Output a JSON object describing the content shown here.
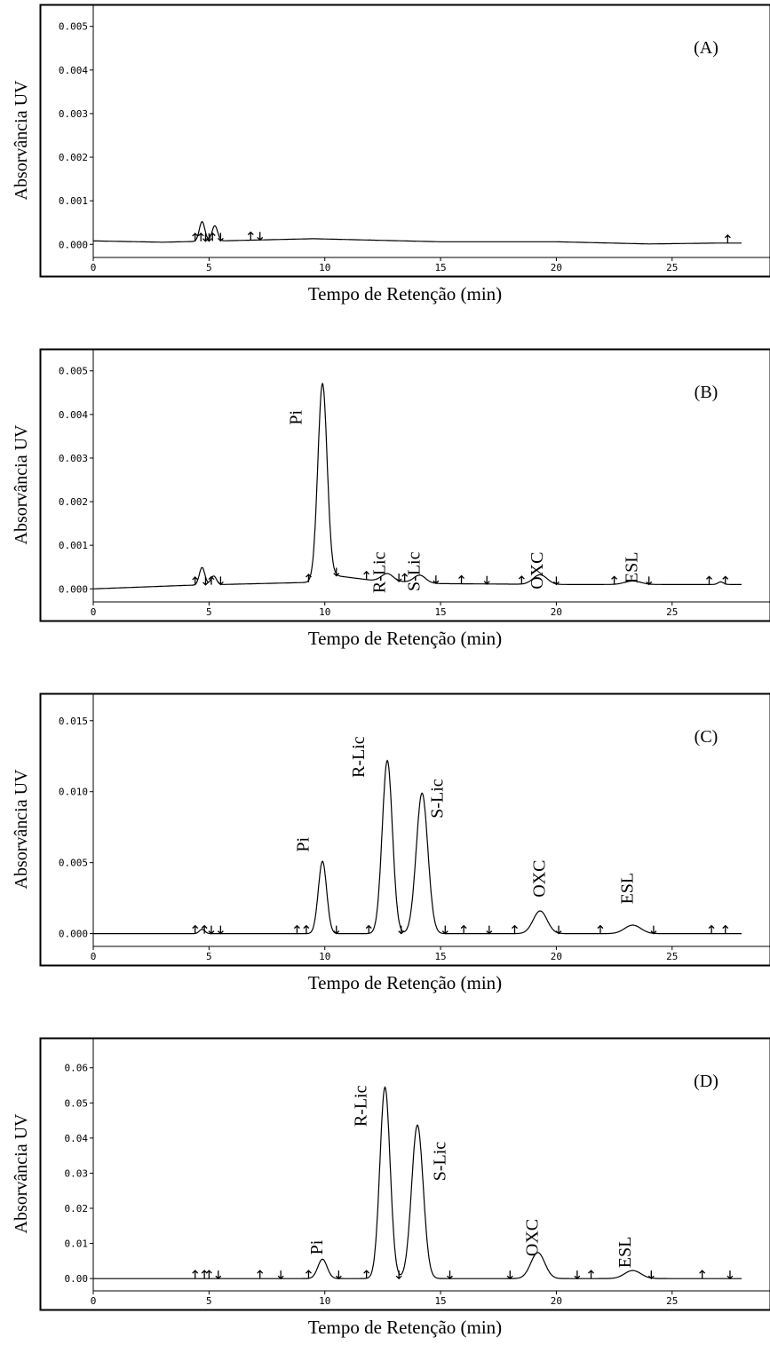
{
  "chart_data": [
    {
      "type": "line",
      "label": "(A)",
      "xlabel": "Tempo de Retenção (min)",
      "ylabel": "Absorvância UV",
      "xlim": [
        0,
        28
      ],
      "ylim": [
        -0.0003,
        0.0053
      ],
      "x_ticks": [
        0,
        5,
        10,
        15,
        20,
        25
      ],
      "y_ticks": [
        0.0,
        0.001,
        0.002,
        0.003,
        0.004,
        0.005
      ],
      "y_tick_labels": [
        "0.000",
        "0.001",
        "0.002",
        "0.003",
        "0.004",
        "0.005"
      ],
      "baseline": [
        [
          0,
          8e-05
        ],
        [
          3,
          5e-05
        ],
        [
          9.5,
          0.00013
        ],
        [
          15,
          6e-05
        ],
        [
          20,
          6e-05
        ],
        [
          24,
          1e-05
        ],
        [
          27,
          3e-05
        ],
        [
          28,
          3e-05
        ]
      ],
      "peaks": [
        {
          "x": 4.7,
          "height": 0.00045,
          "width": 0.12
        },
        {
          "x": 5.25,
          "height": 0.00035,
          "width": 0.12
        }
      ],
      "peak_labels": [],
      "markers": [
        {
          "x": 4.4,
          "dir": "up"
        },
        {
          "x": 4.65,
          "dir": "up"
        },
        {
          "x": 4.85,
          "dir": "down"
        },
        {
          "x": 5.0,
          "dir": "down"
        },
        {
          "x": 5.15,
          "dir": "up"
        },
        {
          "x": 5.5,
          "dir": "down"
        },
        {
          "x": 6.8,
          "dir": "up"
        },
        {
          "x": 7.2,
          "dir": "down"
        },
        {
          "x": 27.4,
          "dir": "up"
        }
      ]
    },
    {
      "type": "line",
      "label": "(B)",
      "xlabel": "Tempo de Retenção (min)",
      "ylabel": "Absorvância UV",
      "xlim": [
        0,
        28
      ],
      "ylim": [
        -0.0003,
        0.0053
      ],
      "x_ticks": [
        0,
        5,
        10,
        15,
        20,
        25
      ],
      "y_ticks": [
        0.0,
        0.001,
        0.002,
        0.003,
        0.004,
        0.005
      ],
      "y_tick_labels": [
        "0.000",
        "0.001",
        "0.002",
        "0.003",
        "0.004",
        "0.005"
      ],
      "baseline": [
        [
          0,
          0.0
        ],
        [
          4,
          8e-05
        ],
        [
          9.5,
          0.00015
        ],
        [
          10.5,
          0.0003
        ],
        [
          12,
          0.0002
        ],
        [
          15,
          0.00012
        ],
        [
          20,
          0.0001
        ],
        [
          28,
          0.0001
        ]
      ],
      "peaks": [
        {
          "x": 4.7,
          "height": 0.0004,
          "width": 0.12
        },
        {
          "x": 5.2,
          "height": 0.0002,
          "width": 0.12
        },
        {
          "x": 9.9,
          "height": 0.0045,
          "width": 0.2
        },
        {
          "x": 12.7,
          "height": 0.00017,
          "width": 0.25
        },
        {
          "x": 14.1,
          "height": 0.00017,
          "width": 0.25
        },
        {
          "x": 19.3,
          "height": 0.00022,
          "width": 0.3
        },
        {
          "x": 23.3,
          "height": 8e-05,
          "width": 0.35
        },
        {
          "x": 27.1,
          "height": 6e-05,
          "width": 0.12
        }
      ],
      "peak_labels": [
        {
          "text": "Pi",
          "x": 9.0,
          "y": 0.0041
        },
        {
          "text": "R-Lic",
          "x": 12.6,
          "y": 0.00085
        },
        {
          "text": "S-Lic",
          "x": 14.1,
          "y": 0.00085
        },
        {
          "text": "OXC",
          "x": 19.4,
          "y": 0.00085
        },
        {
          "text": "ESL",
          "x": 23.5,
          "y": 0.00085
        }
      ],
      "markers": [
        {
          "x": 4.4,
          "dir": "up"
        },
        {
          "x": 4.85,
          "dir": "down"
        },
        {
          "x": 5.1,
          "dir": "up"
        },
        {
          "x": 5.5,
          "dir": "down"
        },
        {
          "x": 9.3,
          "dir": "up"
        },
        {
          "x": 10.5,
          "dir": "down"
        },
        {
          "x": 11.8,
          "dir": "up"
        },
        {
          "x": 13.2,
          "dir": "down"
        },
        {
          "x": 13.45,
          "dir": "up"
        },
        {
          "x": 14.8,
          "dir": "down"
        },
        {
          "x": 15.9,
          "dir": "up"
        },
        {
          "x": 17.0,
          "dir": "down"
        },
        {
          "x": 18.5,
          "dir": "up"
        },
        {
          "x": 20.0,
          "dir": "down"
        },
        {
          "x": 22.5,
          "dir": "up"
        },
        {
          "x": 24.0,
          "dir": "down"
        },
        {
          "x": 26.6,
          "dir": "up"
        },
        {
          "x": 27.3,
          "dir": "up"
        }
      ]
    },
    {
      "type": "line",
      "label": "(C)",
      "xlabel": "Tempo de Retenção (min)",
      "ylabel": "Absorvância UV",
      "xlim": [
        0,
        28
      ],
      "ylim": [
        -0.0009,
        0.0163
      ],
      "x_ticks": [
        0,
        5,
        10,
        15,
        20,
        25
      ],
      "y_ticks": [
        0.0,
        0.005,
        0.01,
        0.015
      ],
      "y_tick_labels": [
        "0.000",
        "0.005",
        "0.010",
        "0.015"
      ],
      "baseline": [
        [
          0,
          0.0
        ],
        [
          28,
          0.0
        ]
      ],
      "peaks": [
        {
          "x": 4.7,
          "height": 0.0003,
          "width": 0.12
        },
        {
          "x": 9.9,
          "height": 0.0051,
          "width": 0.18
        },
        {
          "x": 12.7,
          "height": 0.0122,
          "width": 0.22
        },
        {
          "x": 14.2,
          "height": 0.0099,
          "width": 0.25
        },
        {
          "x": 19.3,
          "height": 0.0016,
          "width": 0.3
        },
        {
          "x": 23.3,
          "height": 0.0006,
          "width": 0.35
        }
      ],
      "peak_labels": [
        {
          "text": "Pi",
          "x": 9.3,
          "y": 0.0068
        },
        {
          "text": "R-Lic",
          "x": 11.7,
          "y": 0.0139
        },
        {
          "text": "S-Lic",
          "x": 15.1,
          "y": 0.0109
        },
        {
          "text": "OXC",
          "x": 19.5,
          "y": 0.0052
        },
        {
          "text": "ESL",
          "x": 23.3,
          "y": 0.0043
        }
      ],
      "markers": [
        {
          "x": 4.4,
          "dir": "up"
        },
        {
          "x": 4.8,
          "dir": "up"
        },
        {
          "x": 5.1,
          "dir": "down"
        },
        {
          "x": 5.5,
          "dir": "down"
        },
        {
          "x": 8.8,
          "dir": "up"
        },
        {
          "x": 9.2,
          "dir": "up"
        },
        {
          "x": 10.5,
          "dir": "down"
        },
        {
          "x": 11.9,
          "dir": "up"
        },
        {
          "x": 13.3,
          "dir": "down"
        },
        {
          "x": 15.2,
          "dir": "down"
        },
        {
          "x": 16.0,
          "dir": "up"
        },
        {
          "x": 17.1,
          "dir": "down"
        },
        {
          "x": 18.2,
          "dir": "up"
        },
        {
          "x": 20.1,
          "dir": "down"
        },
        {
          "x": 21.9,
          "dir": "up"
        },
        {
          "x": 24.2,
          "dir": "down"
        },
        {
          "x": 26.7,
          "dir": "up"
        },
        {
          "x": 27.3,
          "dir": "up"
        }
      ]
    },
    {
      "type": "line",
      "label": "(D)",
      "xlabel": "Tempo de Retenção (min)",
      "ylabel": "Absorvância UV",
      "xlim": [
        0,
        28
      ],
      "ylim": [
        -0.0035,
        0.066
      ],
      "x_ticks": [
        0,
        5,
        10,
        15,
        20,
        25
      ],
      "y_ticks": [
        0.0,
        0.01,
        0.02,
        0.03,
        0.04,
        0.05,
        0.06
      ],
      "y_tick_labels": [
        "0.00",
        "0.01",
        "0.02",
        "0.03",
        "0.04",
        "0.05",
        "0.06"
      ],
      "baseline": [
        [
          0,
          0.0
        ],
        [
          28,
          0.0
        ]
      ],
      "peaks": [
        {
          "x": 9.9,
          "height": 0.0055,
          "width": 0.2
        },
        {
          "x": 12.6,
          "height": 0.0545,
          "width": 0.22
        },
        {
          "x": 14.0,
          "height": 0.0437,
          "width": 0.25
        },
        {
          "x": 19.2,
          "height": 0.0074,
          "width": 0.3
        },
        {
          "x": 23.3,
          "height": 0.0023,
          "width": 0.35
        }
      ],
      "peak_labels": [
        {
          "text": "Pi",
          "x": 9.9,
          "y": 0.011
        },
        {
          "text": "R-Lic",
          "x": 11.8,
          "y": 0.055
        },
        {
          "text": "S-Lic",
          "x": 15.2,
          "y": 0.039
        },
        {
          "text": "OXC",
          "x": 19.2,
          "y": 0.017
        },
        {
          "text": "ESL",
          "x": 23.2,
          "y": 0.012
        }
      ],
      "markers": [
        {
          "x": 4.4,
          "dir": "up"
        },
        {
          "x": 4.8,
          "dir": "up"
        },
        {
          "x": 5.0,
          "dir": "up"
        },
        {
          "x": 5.4,
          "dir": "down"
        },
        {
          "x": 7.2,
          "dir": "up"
        },
        {
          "x": 8.1,
          "dir": "down"
        },
        {
          "x": 9.3,
          "dir": "up"
        },
        {
          "x": 10.6,
          "dir": "down"
        },
        {
          "x": 11.8,
          "dir": "up"
        },
        {
          "x": 13.2,
          "dir": "down"
        },
        {
          "x": 15.4,
          "dir": "down"
        },
        {
          "x": 18.0,
          "dir": "down"
        },
        {
          "x": 20.9,
          "dir": "down"
        },
        {
          "x": 21.5,
          "dir": "up"
        },
        {
          "x": 24.1,
          "dir": "down"
        },
        {
          "x": 26.3,
          "dir": "up"
        },
        {
          "x": 27.5,
          "dir": "down"
        }
      ]
    }
  ]
}
